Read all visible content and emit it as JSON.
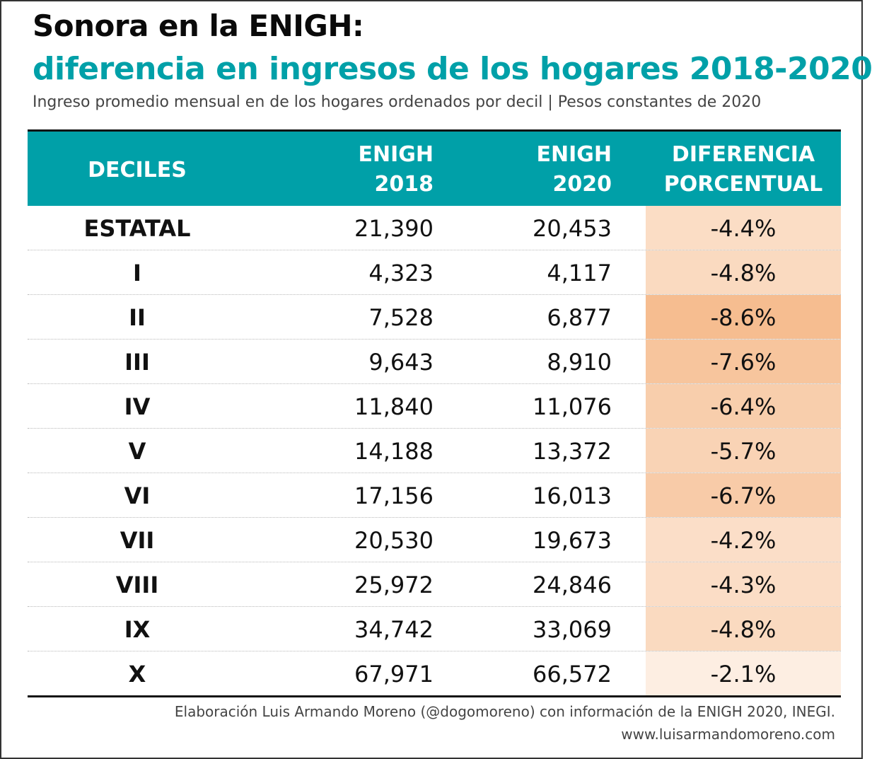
{
  "title": "Sonora en la ENIGH:",
  "subtitle": "diferencia en ingresos de los hogares 2018-2020",
  "caption": "Ingreso promedio mensual en de los hogares ordenados por decil | Pesos constantes de 2020",
  "header": {
    "deciles": "DECILES",
    "enigh2018_line1": "ENIGH",
    "enigh2018_line2": "2018",
    "enigh2020_line1": "ENIGH",
    "enigh2020_line2": "2020",
    "diff_line1": "DIFERENCIA",
    "diff_line2": "PORCENTUAL"
  },
  "colors": {
    "accent": "#00a0a8",
    "diff_scale_light": "#fdeee2",
    "diff_scale_dark": "#f6bd90"
  },
  "chart_data": {
    "type": "table",
    "columns": [
      "DECILES",
      "ENIGH 2018",
      "ENIGH 2020",
      "DIFERENCIA PORCENTUAL"
    ],
    "rows": [
      {
        "label": "ESTATAL",
        "enigh_2018": "21,390",
        "enigh_2020": "20,453",
        "diff": "-4.4%",
        "diff_value": -4.4
      },
      {
        "label": "I",
        "enigh_2018": "4,323",
        "enigh_2020": "4,117",
        "diff": "-4.8%",
        "diff_value": -4.8
      },
      {
        "label": "II",
        "enigh_2018": "7,528",
        "enigh_2020": "6,877",
        "diff": "-8.6%",
        "diff_value": -8.6
      },
      {
        "label": "III",
        "enigh_2018": "9,643",
        "enigh_2020": "8,910",
        "diff": "-7.6%",
        "diff_value": -7.6
      },
      {
        "label": "IV",
        "enigh_2018": "11,840",
        "enigh_2020": "11,076",
        "diff": "-6.4%",
        "diff_value": -6.4
      },
      {
        "label": "V",
        "enigh_2018": "14,188",
        "enigh_2020": "13,372",
        "diff": "-5.7%",
        "diff_value": -5.7
      },
      {
        "label": "VI",
        "enigh_2018": "17,156",
        "enigh_2020": "16,013",
        "diff": "-6.7%",
        "diff_value": -6.7
      },
      {
        "label": "VII",
        "enigh_2018": "20,530",
        "enigh_2020": "19,673",
        "diff": "-4.2%",
        "diff_value": -4.2
      },
      {
        "label": "VIII",
        "enigh_2018": "25,972",
        "enigh_2020": "24,846",
        "diff": "-4.3%",
        "diff_value": -4.3
      },
      {
        "label": "IX",
        "enigh_2018": "34,742",
        "enigh_2020": "33,069",
        "diff": "-4.8%",
        "diff_value": -4.8
      },
      {
        "label": "X",
        "enigh_2018": "67,971",
        "enigh_2020": "66,572",
        "diff": "-2.1%",
        "diff_value": -2.1
      }
    ]
  },
  "footer": {
    "credit": "Elaboración Luis Armando Moreno (@dogomoreno) con información de la ENIGH 2020, INEGI.",
    "website": "www.luisarmandomoreno.com"
  }
}
